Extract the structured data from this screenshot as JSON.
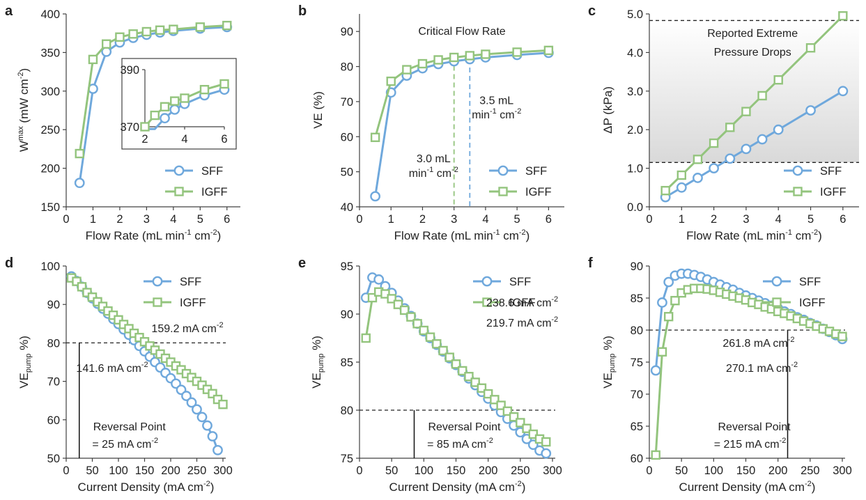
{
  "colors": {
    "SFF": "#6fa8dc",
    "IGFF": "#93c47d",
    "axis": "#404040",
    "threshold": "#222222",
    "band": "#d9d9d9"
  },
  "chart_data": [
    {
      "panel": "a",
      "type": "line",
      "xlabel": "Flow Rate (mL min-1 cm-2)",
      "xlabel_parts": [
        "Flow Rate (mL min",
        "-1",
        " cm",
        "-2",
        ")"
      ],
      "ylabel_parts": [
        "W",
        "max",
        " (mW cm",
        "-2",
        ")"
      ],
      "xlim": [
        0,
        6
      ],
      "ylim": [
        150,
        400
      ],
      "xticks": [
        0,
        1,
        2,
        3,
        4,
        5,
        6
      ],
      "yticks": [
        150,
        200,
        250,
        300,
        350,
        400
      ],
      "legend": "lower-right",
      "series": [
        {
          "name": "SFF",
          "marker": "circle",
          "x": [
            0.5,
            1,
            1.5,
            2,
            2.5,
            3,
            3.5,
            4,
            5,
            6
          ],
          "y": [
            181,
            303,
            351,
            363,
            369,
            373,
            376,
            378,
            381,
            383
          ]
        },
        {
          "name": "IGFF",
          "marker": "square",
          "x": [
            0.5,
            1,
            1.5,
            2,
            2.5,
            3,
            3.5,
            4,
            5,
            6
          ],
          "y": [
            219,
            341,
            361,
            370,
            374,
            377,
            379,
            380,
            383,
            385
          ]
        }
      ],
      "inset": {
        "xlim": [
          2,
          6
        ],
        "ylim": [
          370,
          390
        ],
        "xticks": [
          2,
          4,
          6
        ],
        "yticks": [
          370,
          390
        ]
      }
    },
    {
      "panel": "b",
      "type": "line",
      "xlabel": "Flow Rate (mL min-1 cm-2)",
      "xlabel_parts": [
        "Flow Rate (mL min",
        "-1",
        " cm",
        "-2",
        ")"
      ],
      "ylabel_parts": [
        "VE (%)"
      ],
      "xlim": [
        0,
        6
      ],
      "ylim": [
        40,
        95
      ],
      "xticks": [
        0,
        1,
        2,
        3,
        4,
        5,
        6
      ],
      "yticks": [
        40,
        50,
        60,
        70,
        80,
        90
      ],
      "legend": "lower-right",
      "series": [
        {
          "name": "SFF",
          "marker": "circle",
          "x": [
            0.5,
            1,
            1.5,
            2,
            2.5,
            3,
            3.5,
            4,
            5,
            6
          ],
          "y": [
            43,
            72.6,
            77.4,
            79.5,
            80.7,
            81.5,
            82.1,
            82.6,
            83.3,
            83.9
          ]
        },
        {
          "name": "IGFF",
          "marker": "square",
          "x": [
            0.5,
            1,
            1.5,
            2,
            2.5,
            3,
            3.5,
            4,
            5,
            6
          ],
          "y": [
            59.8,
            75.8,
            79.1,
            80.8,
            81.9,
            82.6,
            83.1,
            83.5,
            84.1,
            84.6
          ]
        }
      ],
      "annotations": {
        "title": "Critical Flow Rate",
        "critical_IGFF": {
          "x": 3.0,
          "line1": "3.0 mL",
          "line2_parts": [
            "min",
            "-1",
            " cm",
            "-2"
          ]
        },
        "critical_SFF": {
          "x": 3.5,
          "line1": "3.5 mL",
          "line2_parts": [
            "min",
            "-1",
            " cm",
            "-2"
          ]
        }
      }
    },
    {
      "panel": "c",
      "type": "line",
      "xlabel": "Flow Rate (mL min-1 cm-2)",
      "xlabel_parts": [
        "Flow Rate (mL min",
        "-1",
        " cm",
        "-2",
        ")"
      ],
      "ylabel_parts": [
        "ΔP (kPa)"
      ],
      "xlim": [
        0,
        6.5
      ],
      "ylim": [
        0,
        5
      ],
      "xticks": [
        0,
        1,
        2,
        3,
        4,
        5,
        6
      ],
      "yticks": [
        0,
        1,
        2,
        3,
        4,
        5
      ],
      "ytick_labels": [
        "0.0",
        "1.0",
        "2.0",
        "3.0",
        "4.0",
        "5.0"
      ],
      "legend": "lower-right",
      "band": {
        "low": 1.15,
        "high": 4.83,
        "label_line1": "Reported Extreme",
        "label_line2": "Pressure Drops"
      },
      "series": [
        {
          "name": "SFF",
          "marker": "circle",
          "x": [
            0.5,
            1,
            1.5,
            2,
            2.5,
            3,
            3.5,
            4,
            5,
            6
          ],
          "y": [
            0.25,
            0.5,
            0.75,
            1.0,
            1.25,
            1.5,
            1.75,
            2.0,
            2.5,
            3.0
          ]
        },
        {
          "name": "IGFF",
          "marker": "square",
          "x": [
            0.5,
            1,
            1.5,
            2,
            2.5,
            3,
            3.5,
            4,
            5,
            6
          ],
          "y": [
            0.42,
            0.82,
            1.23,
            1.65,
            2.06,
            2.47,
            2.88,
            3.29,
            4.12,
            4.95
          ]
        }
      ]
    },
    {
      "panel": "d",
      "type": "line",
      "xlabel": "Current Density (mA cm-2)",
      "xlabel_parts": [
        "Current Density (mA cm",
        "-2",
        ")"
      ],
      "ylabel_parts": [
        "VE",
        "pump",
        " %)"
      ],
      "xlim": [
        0,
        300
      ],
      "ylim": [
        50,
        100
      ],
      "xticks": [
        0,
        50,
        100,
        150,
        200,
        250,
        300
      ],
      "yticks": [
        50,
        60,
        70,
        80,
        90,
        100
      ],
      "legend": "top-right",
      "threshold": 80,
      "reversal_x": 25,
      "reversal_line1": "Reversal Point",
      "reversal_line2_parts": [
        "= 25 mA cm",
        "-2"
      ],
      "label_SFF_parts": [
        "141.6 mA cm",
        "-2"
      ],
      "label_IGFF_parts": [
        "159.2 mA cm",
        "-2"
      ],
      "series": [
        {
          "name": "SFF",
          "marker": "circle",
          "x_start": 10,
          "x_step": 10,
          "y": [
            97.3,
            96.1,
            94.6,
            93.0,
            91.6,
            90.2,
            88.9,
            87.6,
            86.2,
            84.9,
            83.5,
            82.1,
            80.7,
            79.2,
            77.8,
            76.4,
            75.0,
            73.6,
            72.2,
            70.8,
            69.4,
            67.8,
            66.2,
            64.5,
            62.7,
            60.7,
            58.5,
            55.7,
            52.1
          ]
        },
        {
          "name": "IGFF",
          "marker": "square",
          "x_start": 10,
          "x_step": 10,
          "y": [
            96.9,
            96.0,
            94.6,
            93.1,
            91.9,
            90.7,
            89.5,
            88.3,
            87.2,
            86.0,
            84.8,
            83.7,
            82.5,
            81.4,
            80.3,
            79.2,
            78.1,
            77.1,
            76.0,
            75.0,
            74.0,
            73.0,
            72.0,
            71.0,
            70.0,
            69.0,
            67.9,
            66.8,
            65.3,
            64.0
          ]
        }
      ]
    },
    {
      "panel": "e",
      "type": "line",
      "xlabel": "Current Density (mA cm-2)",
      "xlabel_parts": [
        "Current Density (mA cm",
        "-2",
        ")"
      ],
      "ylabel_parts": [
        "VE",
        "pump",
        " %)"
      ],
      "xlim": [
        0,
        300
      ],
      "ylim": [
        75,
        95
      ],
      "xticks": [
        0,
        50,
        100,
        150,
        200,
        250,
        300
      ],
      "yticks": [
        75,
        80,
        85,
        90,
        95
      ],
      "legend": "top-right",
      "threshold": 80,
      "reversal_x": 85,
      "reversal_line1": "Reversal Point",
      "reversal_line2_parts": [
        "= 85 mA cm",
        "-2"
      ],
      "label_SFF_parts": [
        "219.7 mA cm",
        "-2"
      ],
      "label_IGFF_parts": [
        "238.6 mA cm",
        "-2"
      ],
      "series": [
        {
          "name": "SFF",
          "marker": "circle",
          "x_start": 10,
          "x_step": 10,
          "y": [
            91.7,
            93.8,
            93.6,
            92.9,
            92.2,
            91.4,
            90.6,
            89.8,
            89.0,
            88.2,
            87.5,
            86.8,
            86.1,
            85.4,
            84.7,
            84.0,
            83.3,
            82.6,
            81.9,
            81.2,
            80.5,
            79.8,
            79.1,
            78.4,
            77.7,
            77.0,
            76.4,
            75.8,
            75.5
          ]
        },
        {
          "name": "IGFF",
          "marker": "square",
          "x_start": 10,
          "x_step": 10,
          "y": [
            87.5,
            91.7,
            92.3,
            92.1,
            91.6,
            91.0,
            90.4,
            89.7,
            89.0,
            88.3,
            87.6,
            86.9,
            86.2,
            85.5,
            84.8,
            84.1,
            83.5,
            82.9,
            82.3,
            81.7,
            81.1,
            80.5,
            79.9,
            79.3,
            78.7,
            78.1,
            77.5,
            77.0,
            76.7
          ]
        }
      ]
    },
    {
      "panel": "f",
      "type": "line",
      "xlabel": "Current Density (mA cm-2)",
      "xlabel_parts": [
        "Current Density (mA cm",
        "-2",
        ")"
      ],
      "ylabel_parts": [
        "VE",
        "pump",
        " %)"
      ],
      "xlim": [
        0,
        300
      ],
      "ylim": [
        60,
        90
      ],
      "xticks": [
        0,
        50,
        100,
        150,
        200,
        250,
        300
      ],
      "yticks": [
        60,
        65,
        70,
        75,
        80,
        85,
        90
      ],
      "legend": "top-right",
      "threshold": 80,
      "reversal_x": 215,
      "reversal_line1": "Reversal Point",
      "reversal_line2_parts": [
        "= 215 mA cm",
        "-2"
      ],
      "label_SFF_parts": [
        "261.8 mA cm",
        "-2"
      ],
      "label_IGFF_parts": [
        "270.1 mA cm",
        "-2"
      ],
      "series": [
        {
          "name": "SFF",
          "marker": "circle",
          "x_start": 10,
          "x_step": 10,
          "y": [
            73.7,
            84.3,
            87.5,
            88.5,
            88.8,
            88.8,
            88.6,
            88.3,
            87.9,
            87.5,
            87.1,
            86.7,
            86.3,
            85.8,
            85.4,
            85.0,
            84.6,
            84.2,
            83.8,
            83.4,
            82.9,
            82.5,
            82.0,
            81.6,
            81.1,
            80.7,
            80.2,
            79.7,
            79.2,
            78.6
          ]
        },
        {
          "name": "IGFF",
          "marker": "square",
          "x_start": 10,
          "x_step": 10,
          "y": [
            60.5,
            76.6,
            82.1,
            84.6,
            85.8,
            86.3,
            86.5,
            86.5,
            86.4,
            86.2,
            85.9,
            85.6,
            85.3,
            85.0,
            84.7,
            84.3,
            84.0,
            83.6,
            83.3,
            82.9,
            82.6,
            82.2,
            81.8,
            81.4,
            81.0,
            80.6,
            80.2,
            79.8,
            79.4,
            79.0
          ]
        }
      ]
    }
  ]
}
